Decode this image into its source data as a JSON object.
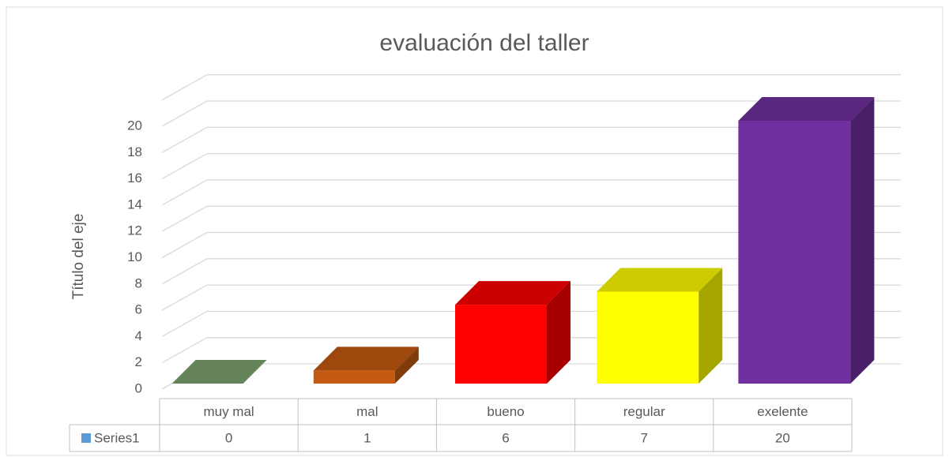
{
  "chart_data": {
    "type": "bar3d",
    "title": "evaluación del taller",
    "y_axis_title": "Título del eje",
    "categories": [
      "muy mal",
      "mal",
      "bueno",
      "regular",
      "exelente"
    ],
    "series": [
      {
        "name": "Series1",
        "color": "#5b9bd5",
        "values": [
          0,
          1,
          6,
          7,
          20
        ],
        "point_colors": [
          "#7fa56f",
          "#c55a11",
          "#ff0000",
          "#ffff00",
          "#7030a0"
        ]
      }
    ],
    "ylim": [
      0,
      22
    ],
    "yticks": [
      0,
      2,
      4,
      6,
      8,
      10,
      12,
      14,
      16,
      18,
      20
    ],
    "grid": true,
    "data_table": true
  }
}
